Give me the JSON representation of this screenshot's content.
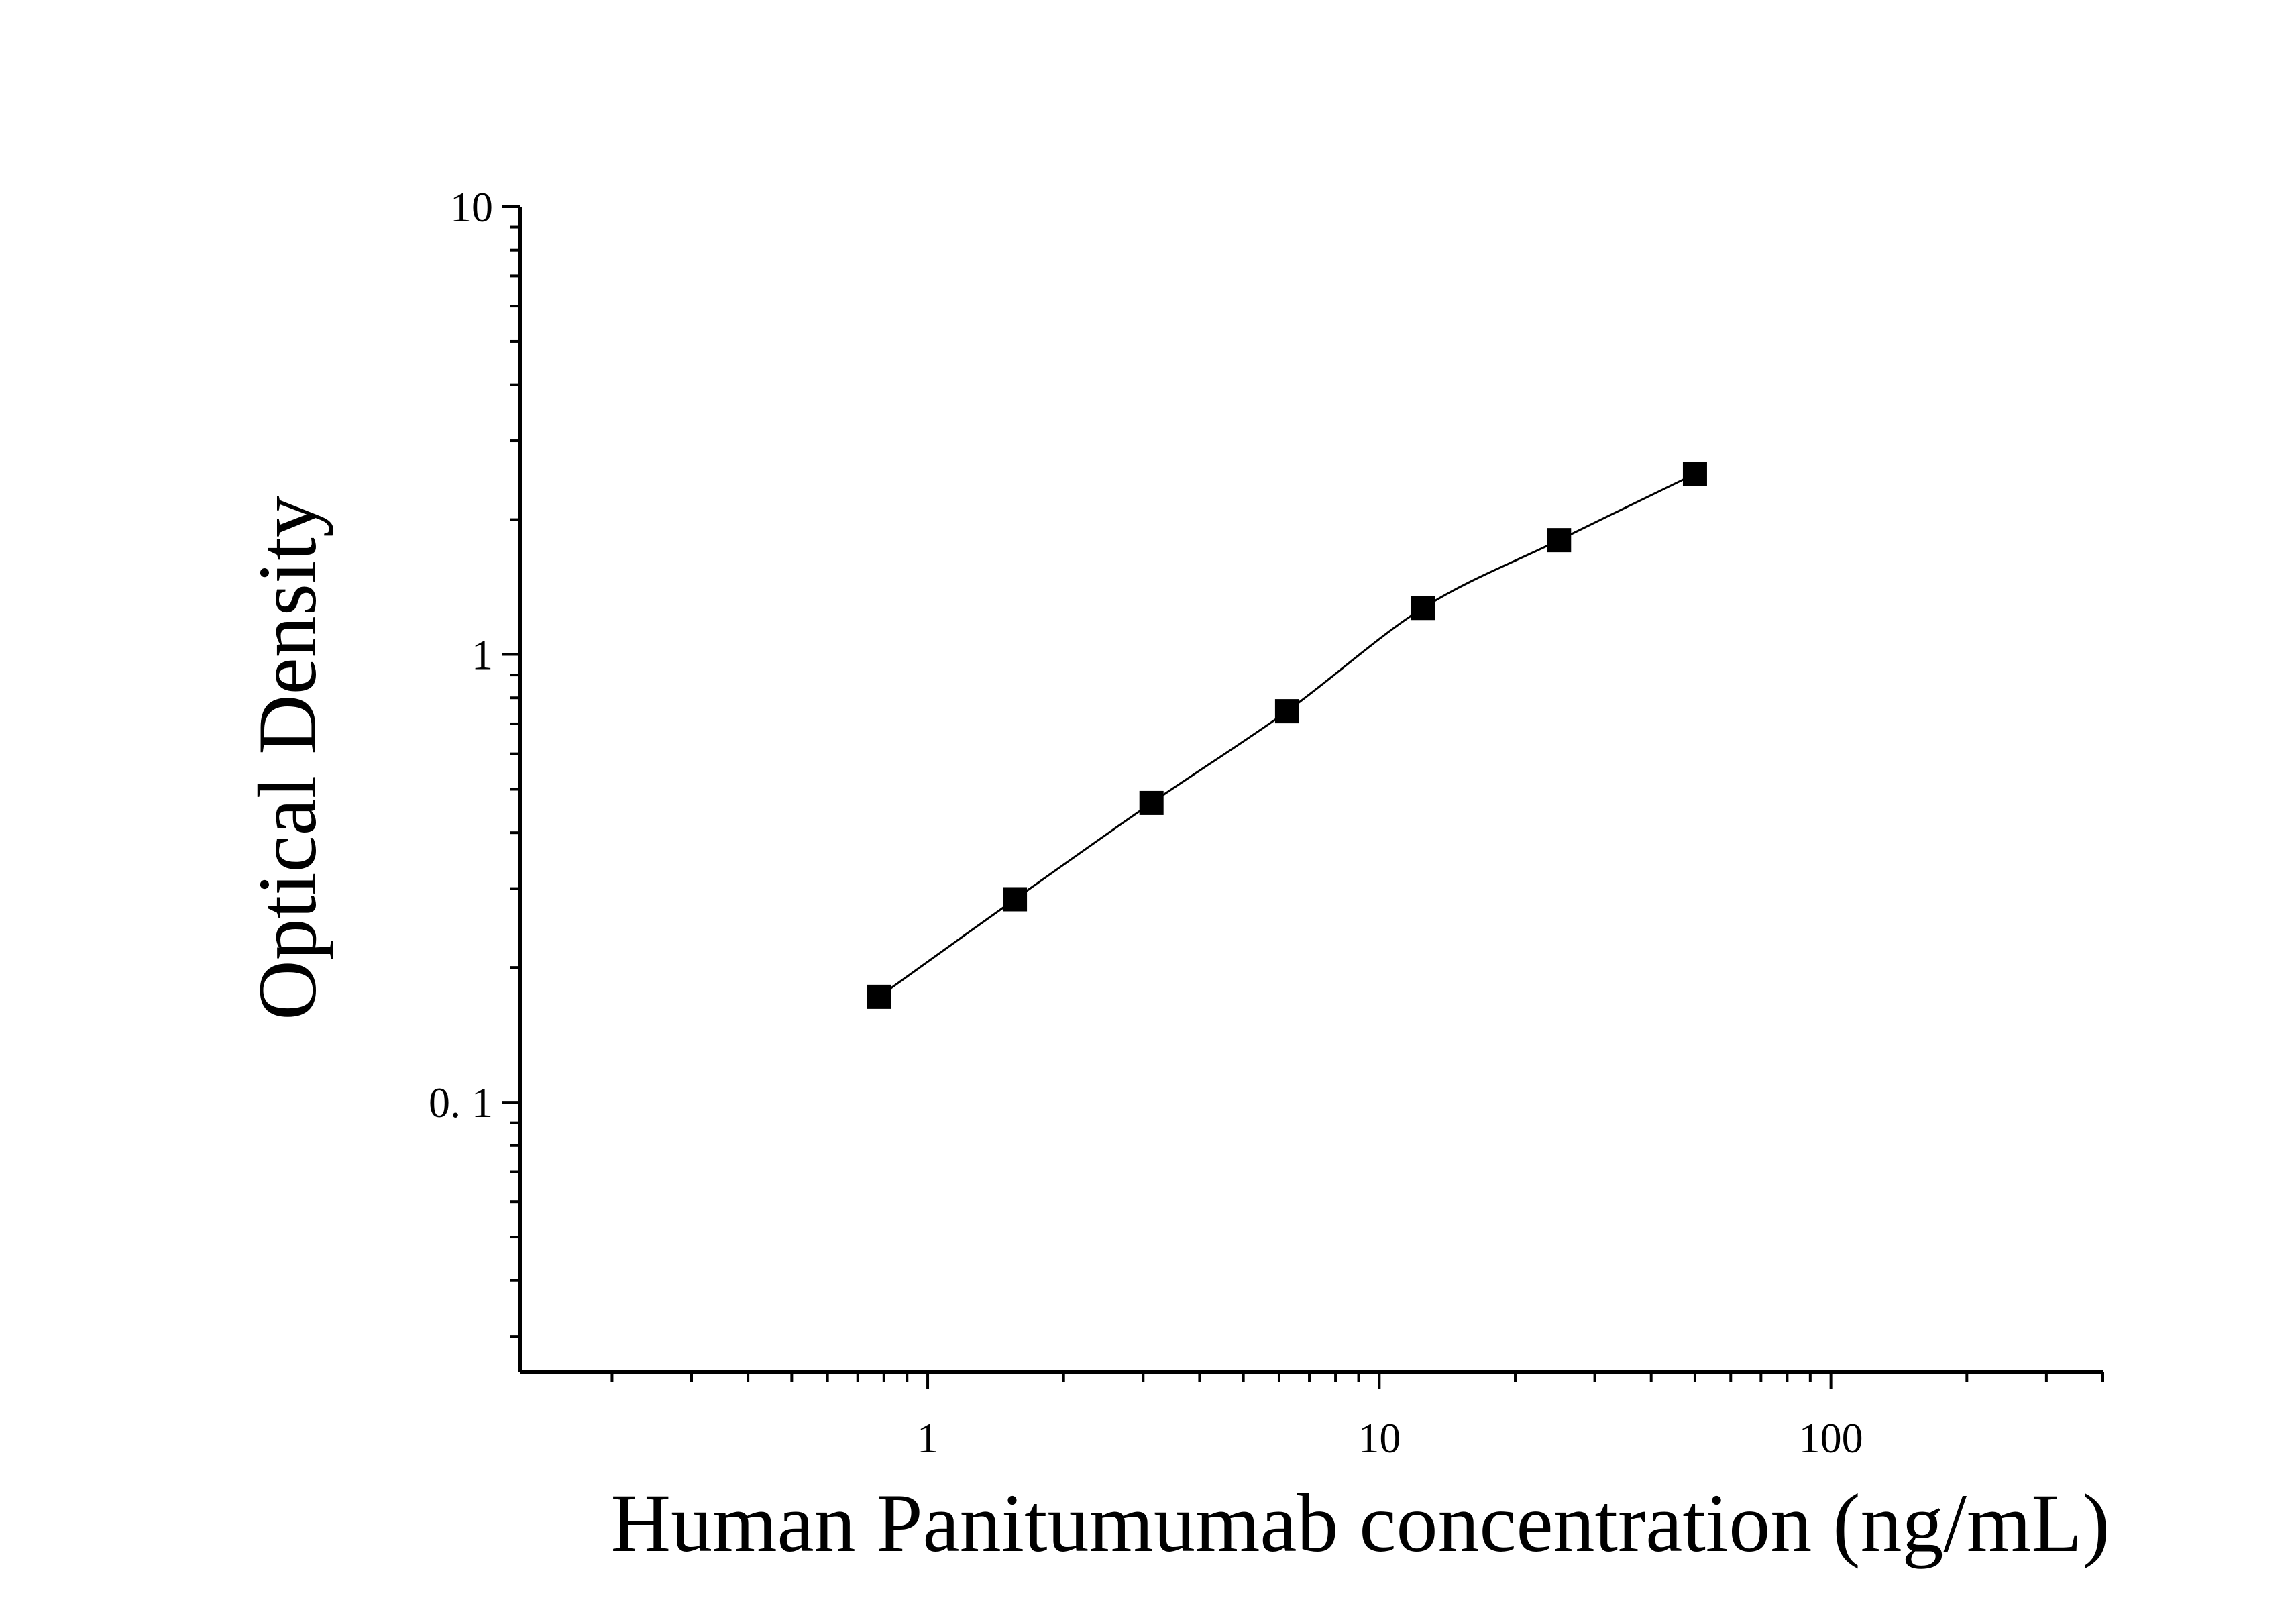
{
  "chart_data": {
    "type": "scatter",
    "title": "",
    "xlabel": "Human Panitumumab concentration (ng/mL)",
    "ylabel": "Optical Density",
    "x_scale": "log",
    "y_scale": "log",
    "xlim": [
      0.125,
      400
    ],
    "ylim": [
      0.025,
      10
    ],
    "x_ticks": [
      {
        "value": 1,
        "label": "1"
      },
      {
        "value": 10,
        "label": "10"
      },
      {
        "value": 100,
        "label": "100"
      }
    ],
    "y_ticks": [
      {
        "value": 0.1,
        "label": "0. 1"
      },
      {
        "value": 1,
        "label": "1"
      },
      {
        "value": 10,
        "label": "10"
      }
    ],
    "grid": false,
    "legend": "none",
    "series": [
      {
        "marker": "square",
        "color": "#000000",
        "fit_line": true,
        "x": [
          0.78,
          1.56,
          3.13,
          6.25,
          12.5,
          25,
          50
        ],
        "y": [
          0.172,
          0.284,
          0.466,
          0.747,
          1.27,
          1.8,
          2.53
        ]
      }
    ]
  }
}
